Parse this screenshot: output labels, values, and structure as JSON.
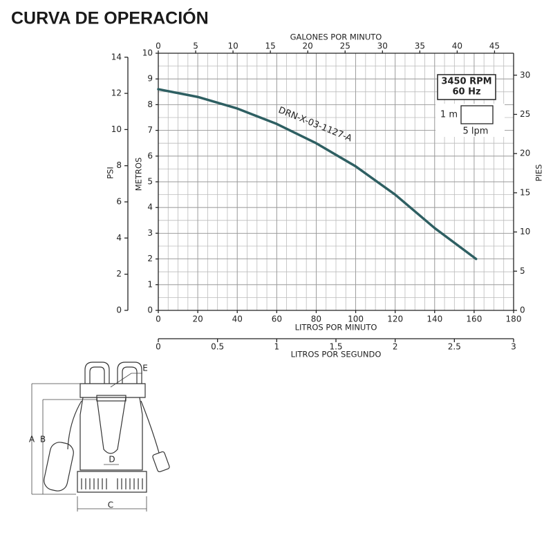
{
  "chart_data": {
    "type": "line",
    "title": "CURVA DE OPERACIÓN",
    "xlabel": "LITROS POR MINUTO",
    "ylabel": "METROS",
    "x": [
      0,
      20,
      40,
      60,
      80,
      100,
      120,
      140,
      161
    ],
    "series": [
      {
        "name": "DRN-X-03-1127-A",
        "color": "#2e5f62",
        "values": [
          8.6,
          8.3,
          7.85,
          7.25,
          6.5,
          5.6,
          4.5,
          3.2,
          2.0
        ]
      }
    ],
    "xlim": [
      0,
      180
    ],
    "xticks": [
      0,
      20,
      40,
      60,
      80,
      100,
      120,
      140,
      160,
      180
    ],
    "ylim": [
      0,
      10
    ],
    "yticks": [
      0,
      1,
      2,
      3,
      4,
      5,
      6,
      7,
      8,
      9,
      10
    ],
    "x2label": "GALONES POR MINUTO",
    "x2lim": [
      0,
      47.55
    ],
    "x2ticks": [
      0,
      5,
      10,
      15,
      20,
      25,
      30,
      35,
      40,
      45
    ],
    "y2label": "PIES",
    "y2lim": [
      0,
      32.8
    ],
    "y2ticks": [
      0,
      5,
      10,
      15,
      20,
      25,
      30
    ],
    "y3label": "PSI",
    "y3lim": [
      0,
      14.22
    ],
    "y3ticks": [
      0,
      2,
      4,
      6,
      8,
      10,
      12,
      14
    ],
    "x3label": "LITROS POR SEGUNDO",
    "x3lim": [
      0,
      3
    ],
    "x3ticks": [
      0,
      0.5,
      1,
      1.5,
      2,
      2.5,
      3
    ],
    "speed": "3450 RPM",
    "frequency": "60 Hz",
    "scale_y": "1 m",
    "scale_x": "5 lpm",
    "grid": true
  },
  "diagram": {
    "labels": [
      "A",
      "B",
      "C",
      "D",
      "E"
    ]
  }
}
